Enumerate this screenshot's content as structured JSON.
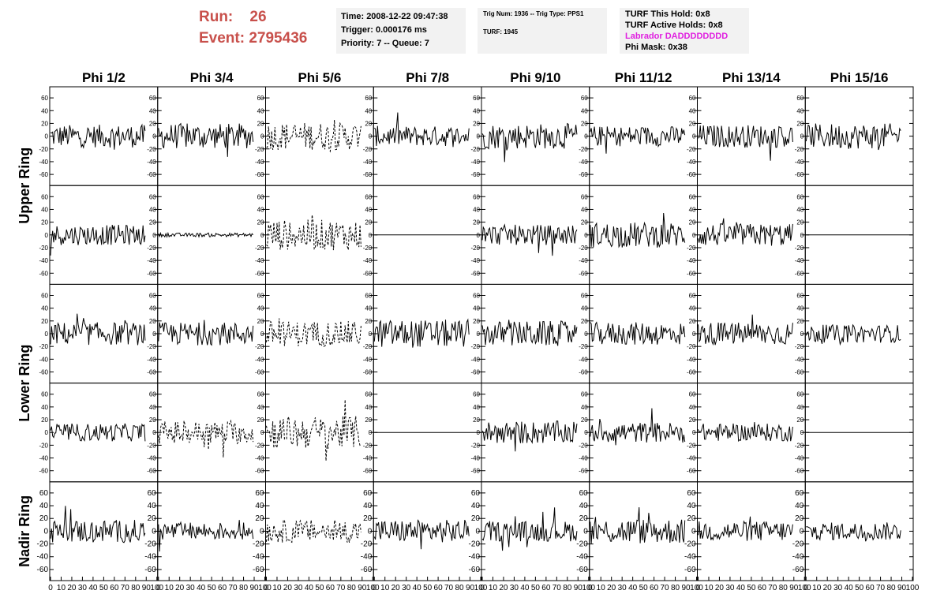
{
  "run": {
    "run_label": "Run:",
    "run_value": "26",
    "event_label": "Event:",
    "event_value": "2795436",
    "color": "#c8504b"
  },
  "header": {
    "time": "Time: 2008-12-22 09:47:38",
    "trigger": "Trigger: 0.000176 ms",
    "priority": "Priority: 7 -- Queue: 7",
    "trig_num": "Trig Num: 1936 -- Trig Type: PPS1",
    "turf": "TURF: 1945",
    "turf_this_hold": "TURF This Hold: 0x8",
    "turf_active_holds": "TURF Active Holds: 0x8",
    "labrador": "Labrador DADDDDDDDD",
    "labrador_color": "#e020e0",
    "phi_mask": "Phi Mask: 0x38"
  },
  "chart_data": {
    "type": "line",
    "columns": [
      "Phi 1/2",
      "Phi 3/4",
      "Phi 5/6",
      "Phi 7/8",
      "Phi 9/10",
      "Phi 11/12",
      "Phi 13/14",
      "Phi 15/16"
    ],
    "ring_labels": [
      "Upper Ring",
      "Lower Ring",
      "Nadir Ring"
    ],
    "rows": 5,
    "row_ring_map": [
      0,
      0,
      1,
      1,
      2
    ],
    "xlim": [
      0,
      100
    ],
    "ylim": [
      -70,
      70
    ],
    "y_ticks": [
      -60,
      -40,
      -20,
      0,
      20,
      40,
      60
    ],
    "x_ticks": [
      0,
      10,
      20,
      30,
      40,
      50,
      60,
      70,
      80,
      90,
      100
    ],
    "samples": 90,
    "line_color": "#000000",
    "note_amplitudes": "approximate waveform amplitudes per panel (rows x columns)",
    "amplitudes": [
      [
        18,
        20,
        22,
        16,
        20,
        16,
        18,
        20
      ],
      [
        16,
        3,
        24,
        0,
        16,
        20,
        18,
        0
      ],
      [
        18,
        18,
        20,
        22,
        20,
        18,
        18,
        14
      ],
      [
        14,
        18,
        26,
        0,
        18,
        16,
        14,
        0
      ],
      [
        18,
        14,
        18,
        18,
        16,
        20,
        16,
        14
      ]
    ],
    "dashed": [
      [
        false,
        false,
        true,
        false,
        false,
        false,
        false,
        false
      ],
      [
        false,
        false,
        true,
        false,
        false,
        false,
        false,
        false
      ],
      [
        false,
        false,
        true,
        false,
        false,
        false,
        false,
        false
      ],
      [
        false,
        true,
        true,
        false,
        false,
        false,
        false,
        false
      ],
      [
        false,
        false,
        true,
        false,
        false,
        false,
        false,
        false
      ]
    ]
  }
}
